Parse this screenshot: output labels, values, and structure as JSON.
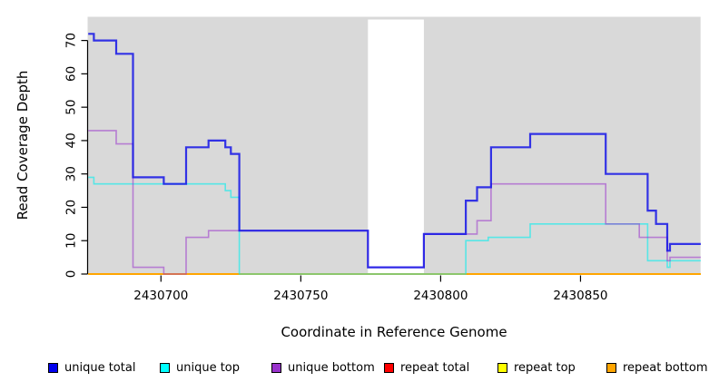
{
  "chart_data": {
    "type": "line",
    "subtype": "step-coverage",
    "title": "",
    "xlabel": "Coordinate in Reference Genome",
    "ylabel": "Read Coverage Depth",
    "xlim": [
      2430674,
      2430893
    ],
    "ylim": [
      0,
      77
    ],
    "xticks": [
      "2430700",
      "2430750",
      "2430800",
      "2430850"
    ],
    "yticks": [
      "0",
      "10",
      "20",
      "30",
      "40",
      "50",
      "60",
      "70"
    ],
    "grid": false,
    "background": "#d9d9d9",
    "gap_region": {
      "x0": 2430774,
      "x1": 2430794,
      "color": "#ffffff"
    },
    "legend_position": "bottom",
    "draw_order": [
      "repeat total",
      "repeat top",
      "repeat bottom",
      "unique top",
      "unique bottom",
      "unique total"
    ],
    "series": [
      {
        "name": "unique total",
        "color": "#1414e6",
        "legend_fill": "#0000ee",
        "opacity": 0.85,
        "width": 2.2,
        "steps": [
          [
            2430674,
            72
          ],
          [
            2430676,
            70
          ],
          [
            2430684,
            66
          ],
          [
            2430690,
            29
          ],
          [
            2430701,
            27
          ],
          [
            2430709,
            38
          ],
          [
            2430717,
            40
          ],
          [
            2430723,
            38
          ],
          [
            2430725,
            36
          ],
          [
            2430728,
            13
          ],
          [
            2430774,
            2
          ],
          [
            2430794,
            12
          ],
          [
            2430809,
            22
          ],
          [
            2430813,
            26
          ],
          [
            2430818,
            38
          ],
          [
            2430832,
            42
          ],
          [
            2430859,
            30
          ],
          [
            2430874,
            19
          ],
          [
            2430877,
            15
          ],
          [
            2430881,
            7
          ],
          [
            2430882,
            9
          ]
        ]
      },
      {
        "name": "unique top",
        "color": "#00eeee",
        "legend_fill": "#00ffff",
        "opacity": 0.6,
        "width": 1.6,
        "steps": [
          [
            2430674,
            29
          ],
          [
            2430676,
            27
          ],
          [
            2430723,
            25
          ],
          [
            2430725,
            23
          ],
          [
            2430728,
            0
          ],
          [
            2430809,
            10
          ],
          [
            2430817,
            11
          ],
          [
            2430832,
            15
          ],
          [
            2430874,
            4
          ],
          [
            2430881,
            2
          ],
          [
            2430882,
            4
          ]
        ]
      },
      {
        "name": "unique bottom",
        "color": "#9932cc",
        "legend_fill": "#9932cc",
        "opacity": 0.55,
        "width": 1.6,
        "steps": [
          [
            2430674,
            43
          ],
          [
            2430684,
            39
          ],
          [
            2430690,
            2
          ],
          [
            2430701,
            0
          ],
          [
            2430709,
            11
          ],
          [
            2430717,
            13
          ],
          [
            2430774,
            2
          ],
          [
            2430794,
            12
          ],
          [
            2430813,
            16
          ],
          [
            2430818,
            27
          ],
          [
            2430859,
            15
          ],
          [
            2430871,
            11
          ],
          [
            2430881,
            4
          ],
          [
            2430882,
            5
          ]
        ]
      },
      {
        "name": "repeat total",
        "color": "#ff0000",
        "legend_fill": "#ff0000",
        "opacity": 1,
        "width": 1.5,
        "steps": [
          [
            2430674,
            0
          ]
        ]
      },
      {
        "name": "repeat top",
        "color": "#ffff00",
        "legend_fill": "#ffff00",
        "opacity": 1,
        "width": 1.5,
        "steps": [
          [
            2430674,
            0
          ]
        ]
      },
      {
        "name": "repeat bottom",
        "color": "#ffa500",
        "legend_fill": "#ffa500",
        "opacity": 1,
        "width": 2,
        "steps": [
          [
            2430674,
            0
          ]
        ]
      }
    ]
  }
}
